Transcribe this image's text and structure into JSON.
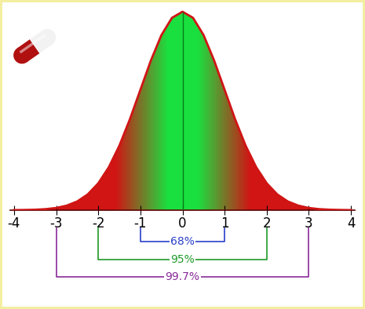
{
  "chart_data": {
    "type": "area",
    "x": [
      -4,
      -3.75,
      -3.5,
      -3.25,
      -3,
      -2.75,
      -2.5,
      -2.25,
      -2,
      -1.75,
      -1.5,
      -1.25,
      -1,
      -0.75,
      -0.5,
      -0.25,
      0,
      0.25,
      0.5,
      0.75,
      1,
      1.25,
      1.5,
      1.75,
      2,
      2.25,
      2.5,
      2.75,
      3,
      3.25,
      3.5,
      3.75,
      4
    ],
    "values": [
      0.0001,
      0.0004,
      0.0009,
      0.002,
      0.0044,
      0.0091,
      0.0175,
      0.0317,
      0.054,
      0.0863,
      0.1295,
      0.1826,
      0.242,
      0.3011,
      0.3521,
      0.3867,
      0.399,
      0.3867,
      0.3521,
      0.3011,
      0.242,
      0.1826,
      0.1295,
      0.0863,
      0.054,
      0.0317,
      0.0175,
      0.0091,
      0.0044,
      0.002,
      0.0009,
      0.0004,
      0.0001
    ],
    "color": "#d01515",
    "xlim": [
      -4.1,
      4.1
    ],
    "xticks": [
      -4,
      -3,
      -2,
      -1,
      0,
      1,
      2,
      3,
      4
    ],
    "tick_labels": "x",
    "annotations": [
      {
        "from": -1,
        "to": 1,
        "label": "68%",
        "color": "#2a3fc8"
      },
      {
        "from": -2,
        "to": 2,
        "label": "95%",
        "color": "#1f9a2a"
      },
      {
        "from": -3,
        "to": 3,
        "label": "99.7%",
        "color": "#8a2a9a"
      }
    ]
  }
}
